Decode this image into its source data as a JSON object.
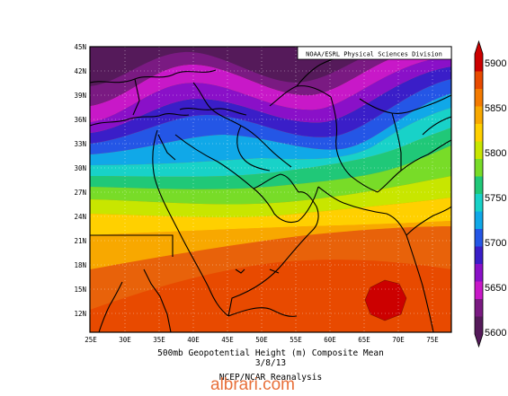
{
  "map": {
    "credit": "NOAA/ESRL Physical Sciences Division",
    "caption_line1": "500mb Geopotential Height (m) Composite Mean",
    "caption_line2": "3/8/13",
    "caption_line3": "NCEP/NCAR Reanalysis",
    "watermark": "albrari.com",
    "lat_labels": [
      "45N",
      "42N",
      "39N",
      "36N",
      "33N",
      "30N",
      "27N",
      "24N",
      "21N",
      "18N",
      "15N",
      "12N"
    ],
    "lon_labels": [
      "25E",
      "30E",
      "35E",
      "40E",
      "45E",
      "50E",
      "55E",
      "60E",
      "65E",
      "70E",
      "75E"
    ]
  },
  "colorbar": {
    "labels": [
      "5900",
      "5850",
      "5800",
      "5750",
      "5700",
      "5650",
      "5600"
    ],
    "colors": [
      "#cc0000",
      "#e84a00",
      "#f47a00",
      "#f8a800",
      "#ffd000",
      "#c8e600",
      "#78dc28",
      "#20c878",
      "#18d2c8",
      "#10a8e8",
      "#2456e6",
      "#3a1ec8",
      "#8a10c8",
      "#c818c8",
      "#7a1a82",
      "#551a5a"
    ]
  }
}
